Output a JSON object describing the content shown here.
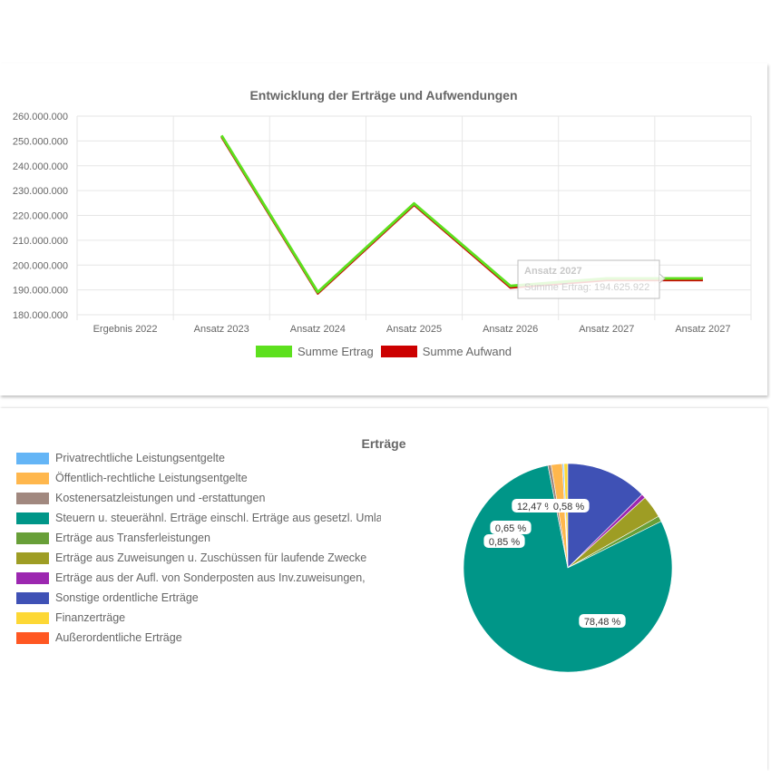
{
  "colors": {
    "ertrag": "#5de01e",
    "aufwand": "#cc0000",
    "grid": "#e6e6e6",
    "tooltip_border": "#bdbdbd"
  },
  "chart_data": [
    {
      "type": "line",
      "title": "Entwicklung der Erträge und Aufwendungen",
      "categories": [
        "Ergebnis 2022",
        "Ansatz 2023",
        "Ansatz 2024",
        "Ansatz 2025",
        "Ansatz 2026",
        "Ansatz 2027",
        "Ansatz 2027"
      ],
      "ylim": [
        180000000,
        260000000
      ],
      "yticks": [
        "180.000.000",
        "190.000.000",
        "200.000.000",
        "210.000.000",
        "220.000.000",
        "230.000.000",
        "240.000.000",
        "250.000.000",
        "260.000.000"
      ],
      "grid": true,
      "legend_position": "bottom",
      "series": [
        {
          "name": "Summe Ertrag",
          "color": "#5de01e",
          "values": [
            null,
            252200000,
            189100000,
            224800000,
            191600000,
            194625922,
            194625922
          ]
        },
        {
          "name": "Summe Aufwand",
          "color": "#cc0000",
          "values": [
            null,
            252000000,
            188900000,
            224600000,
            191300000,
            194300000,
            194300000
          ]
        }
      ],
      "tooltip": {
        "title": "Ansatz 2027",
        "text": "Summe Ertrag: 194.625.922"
      }
    },
    {
      "type": "pie",
      "title": "Erträge",
      "legend_position": "left",
      "categories": [
        "Privatrechtliche Leistungsentgelte",
        "Öffentlich-rechtliche Leistungsentgelte",
        "Kostenersatzleistungen und -erstattungen",
        "Steuern u. steuerähnl. Erträge einschl. Erträge aus gesetzl. Umlagen",
        "Erträge aus Transferleistungen",
        "Erträge aus Zuweisungen u. Zuschüssen für laufende Zwecke",
        "Erträge aus der Aufl. von Sonderposten aus Inv.zuweisungen,",
        "Sonstige ordentliche Erträge",
        "Finanzerträge",
        "Außerordentliche Erträge"
      ],
      "colors": [
        "#64b5f6",
        "#ffb74d",
        "#a1887f",
        "#009688",
        "#689f38",
        "#9e9d24",
        "#9c27b0",
        "#3f51b5",
        "#fdd835",
        "#ff5722"
      ],
      "values": [
        0.2,
        1.7,
        0.5,
        78.48,
        0.85,
        3.5,
        0.65,
        12.47,
        0.58,
        0.05
      ],
      "labels": [
        "",
        "",
        "",
        "78,48 %",
        "0,85 %",
        "",
        "0,65 %",
        "12,47 %",
        "0,58 %",
        ""
      ]
    }
  ]
}
